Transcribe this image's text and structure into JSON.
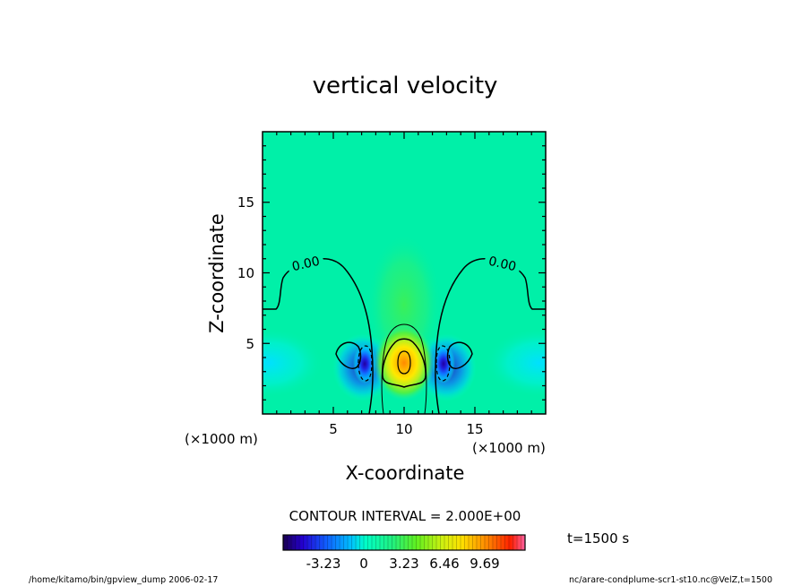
{
  "chart_data": {
    "type": "heatmap",
    "title": "vertical velocity",
    "xlabel": "X-coordinate",
    "ylabel": "Z-coordinate",
    "x_unit": "(×1000 m)",
    "y_unit": "(×1000 m)",
    "xlim": [
      0,
      20
    ],
    "ylim": [
      0,
      20
    ],
    "xticks": [
      5,
      10,
      15
    ],
    "yticks": [
      5,
      10,
      15
    ],
    "contour_interval_text": "CONTOUR INTERVAL = 2.000E+00",
    "contour_labels": [
      "0.00",
      "0.00"
    ],
    "colorbar": {
      "range": [
        -6.46,
        12.92
      ],
      "ticks": [
        "-3.23",
        "0",
        "3.23",
        "6.46",
        "9.69"
      ],
      "tick_values": [
        -3.23,
        0,
        3.23,
        6.46,
        9.69
      ]
    },
    "features": [
      {
        "kind": "updraft",
        "x": 10,
        "z": 3.5,
        "peak": 12
      },
      {
        "kind": "downdraft",
        "x": 7.3,
        "z": 3.5,
        "peak": -5.5
      },
      {
        "kind": "downdraft",
        "x": 12.7,
        "z": 3.5,
        "peak": -5.5
      }
    ]
  },
  "time_label": "t=1500 s",
  "footer": {
    "left": "/home/kitamo/bin/gpview_dump  2006-02-17",
    "right": "nc/arare-condplume-scr1-st10.nc@VelZ,t=1500"
  }
}
